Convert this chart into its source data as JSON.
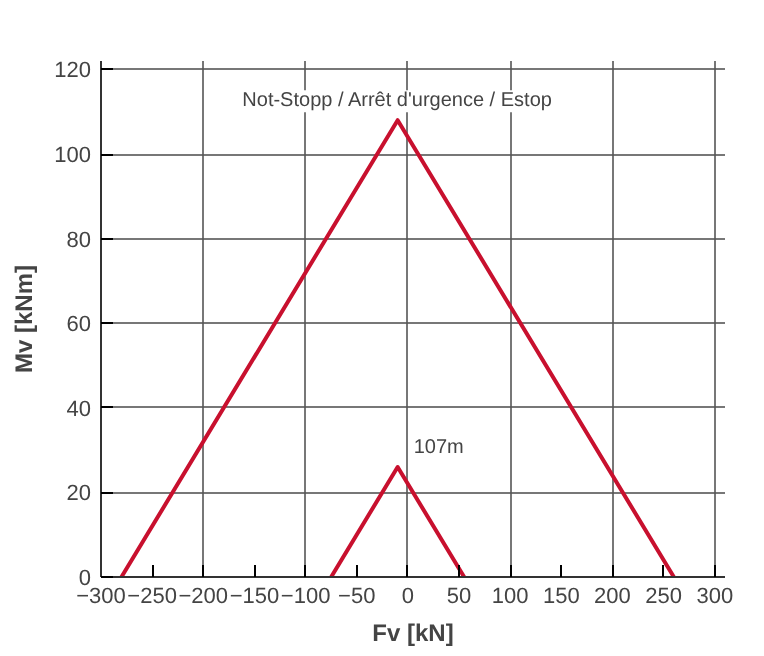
{
  "chart_data": {
    "type": "line",
    "xlabel": "Fv [kN]",
    "ylabel": "Mv [kNm]",
    "xlim": [
      -300,
      310
    ],
    "ylim": [
      0,
      122
    ],
    "xticks": [
      -300,
      -250,
      -200,
      -150,
      -100,
      -50,
      0,
      50,
      100,
      150,
      200,
      250,
      300
    ],
    "yticks": [
      0,
      20,
      40,
      60,
      80,
      100,
      120
    ],
    "grid": true,
    "line_style": "solid",
    "marker": "none",
    "series": [
      {
        "color": "#c8102e",
        "x": [
          -280,
          -10,
          260
        ],
        "values": [
          0,
          108,
          0
        ]
      },
      {
        "color": "#c8102e",
        "x": [
          -75,
          -10,
          55
        ],
        "values": [
          0,
          26,
          0
        ]
      }
    ],
    "annotations": [
      {
        "text": "Not-Stopp / Arrêt d'urgence / Estop",
        "x": -10,
        "y": 108
      },
      {
        "text": "107m",
        "x": -10,
        "y": 26
      }
    ]
  }
}
